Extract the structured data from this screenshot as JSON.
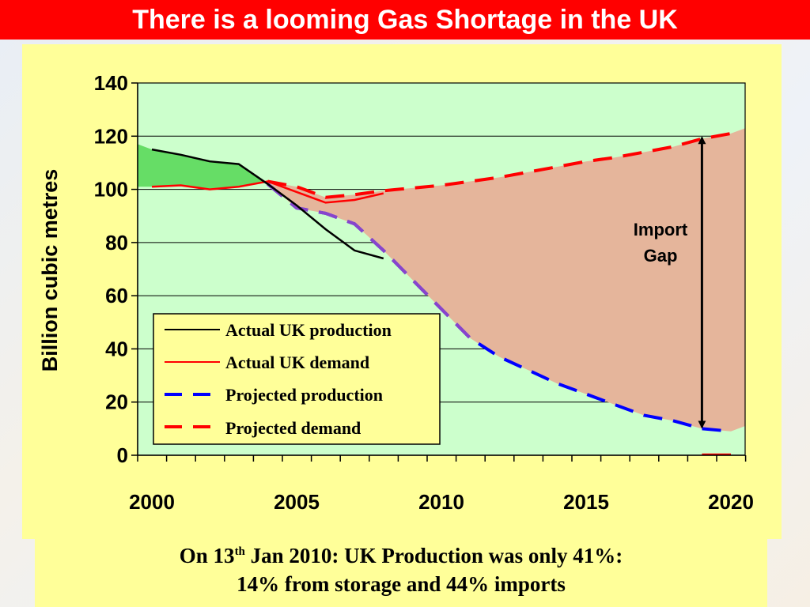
{
  "slide": {
    "title": "There is a looming Gas Shortage in the UK",
    "caption": {
      "line1_pre": "On 13",
      "line1_sup": "th",
      "line1_post": " Jan 2010: UK Production was only 41%:",
      "line2": "14% from storage and 44% imports"
    }
  },
  "colors": {
    "title_bg": "#ff0000",
    "panel_bg": "#ffff99",
    "plot_bg": "#ccffcc",
    "surplus_fill": "#66dd66",
    "gap_fill": "#e5b59b",
    "actual_production": "#000000",
    "actual_demand": "#ff0000",
    "projected_production": "#0000ff",
    "projected_demand": "#ff0000",
    "projected_production_overlap": "#8844cc"
  },
  "chart_data": {
    "type": "line",
    "title": "",
    "xlabel": "",
    "ylabel": "Billion cubic metres",
    "xlim": [
      2000,
      2020
    ],
    "ylim": [
      0,
      140
    ],
    "x_ticks": [
      2000,
      2005,
      2010,
      2015,
      2020
    ],
    "y_ticks": [
      0,
      20,
      40,
      60,
      80,
      100,
      120,
      140
    ],
    "grid": "horizontal",
    "legend_position": "bottom-left",
    "series": [
      {
        "name": "Actual UK production",
        "style": "solid",
        "x": [
          2000,
          2001,
          2002,
          2003,
          2004,
          2005,
          2006,
          2007,
          2008
        ],
        "y": [
          115,
          113,
          110.5,
          109.5,
          102,
          94,
          85,
          77,
          74
        ]
      },
      {
        "name": "Actual UK demand",
        "style": "solid",
        "x": [
          2000,
          2001,
          2002,
          2003,
          2004,
          2005,
          2006,
          2007,
          2008
        ],
        "y": [
          101,
          101.5,
          100,
          101,
          103,
          99,
          95,
          96,
          98.5
        ]
      },
      {
        "name": "Projected production",
        "style": "dashed",
        "x": [
          2004,
          2005,
          2006,
          2007,
          2008,
          2009,
          2010,
          2011,
          2012,
          2013,
          2014,
          2015,
          2016,
          2017,
          2018,
          2019,
          2020
        ],
        "y": [
          102,
          93,
          91,
          87,
          77,
          66,
          55,
          44,
          37,
          32,
          27,
          23,
          19,
          15,
          13,
          10,
          9
        ]
      },
      {
        "name": "Projected demand",
        "style": "dashed",
        "x": [
          2004,
          2005,
          2006,
          2007,
          2008,
          2009,
          2010,
          2011,
          2012,
          2013,
          2014,
          2015,
          2016,
          2017,
          2018,
          2019,
          2020
        ],
        "y": [
          103,
          101,
          97,
          98,
          99.5,
          100.5,
          101.5,
          103,
          104.5,
          106.5,
          108.5,
          110.5,
          112,
          114,
          116,
          119,
          121
        ]
      }
    ],
    "annotations": [
      {
        "text_line1": "Import",
        "text_line2": "Gap",
        "type": "double-arrow",
        "x": 2019,
        "y_from": 10,
        "y_to": 120
      }
    ]
  }
}
